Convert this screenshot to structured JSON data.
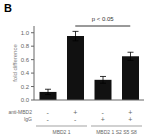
{
  "chart_data": {
    "type": "bar",
    "title": "B",
    "categories": [
      "-\n-",
      "+\n-",
      "-\n+",
      "+\n+"
    ],
    "values": [
      0.12,
      0.95,
      0.3,
      0.65
    ],
    "errors": [
      0.04,
      0.07,
      0.05,
      0.06
    ],
    "color": "#111111",
    "ylabel": "fold difference",
    "ylim": [
      0,
      1.1
    ],
    "yticks": [
      {
        "value": 0.0,
        "label": "0.0"
      },
      0.2,
      0.4,
      0.6,
      0.8,
      {
        "value": 1.0,
        "label": "1.0"
      }
    ],
    "grid": false,
    "row_labels": [
      "anti-MBD2",
      "IgG"
    ],
    "group_labels": [
      "MBD2 1",
      "MBD2 1 S2 S5 S8"
    ],
    "significance": {
      "text": "p < 0.05",
      "categories": [
        1,
        3
      ]
    }
  }
}
